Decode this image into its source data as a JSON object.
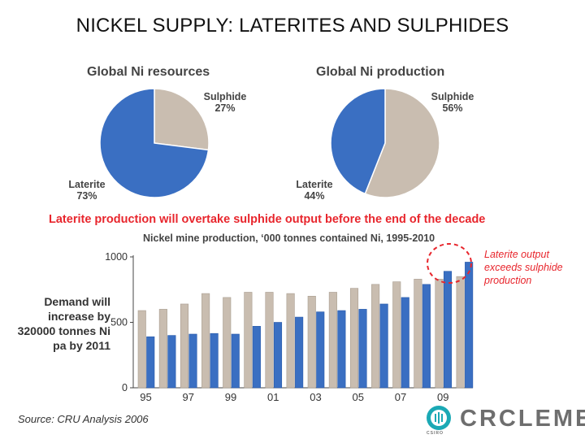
{
  "slide": {
    "title": "NICKEL SUPPLY:  LATERITES AND SULPHIDES",
    "headline": "Laterite production will overtake sulphide output before the end of the decade",
    "demand_note": "Demand will increase by 320000 tonnes Ni pa by 2011",
    "callout": "Laterite output exceeds sulphide production",
    "source": "Source: CRU Analysis 2006",
    "logo": {
      "word": "CRCLEME",
      "small_text": "CSIRO"
    }
  },
  "colors": {
    "laterite": "#3a6fc2",
    "sulphide": "#c9bdb0",
    "accent": "#e8262d"
  },
  "chart_data": [
    {
      "type": "pie",
      "title": "Global Ni resources",
      "labels": [
        "Sulphide",
        "Laterite"
      ],
      "values": [
        27,
        73
      ],
      "value_labels": [
        "27%",
        "73%"
      ]
    },
    {
      "type": "pie",
      "title": "Global Ni production",
      "labels": [
        "Sulphide",
        "Laterite"
      ],
      "values": [
        56,
        44
      ],
      "value_labels": [
        "56%",
        "44%"
      ]
    },
    {
      "type": "bar",
      "title": "Nickel mine production, ‘000 tonnes contained Ni, 1995-2010",
      "categories": [
        "95",
        "96",
        "97",
        "98",
        "99",
        "00",
        "01",
        "02",
        "03",
        "04",
        "05",
        "06",
        "07",
        "08",
        "09",
        "10"
      ],
      "tick_labels": [
        "95",
        "97",
        "99",
        "01",
        "03",
        "05",
        "07",
        "09"
      ],
      "ylim": [
        0,
        1000
      ],
      "yticks": [
        "0",
        "500",
        "1000"
      ],
      "series": [
        {
          "name": "Sulphide",
          "values": [
            590,
            600,
            640,
            720,
            690,
            730,
            730,
            720,
            700,
            730,
            760,
            790,
            810,
            830,
            830,
            850
          ]
        },
        {
          "name": "Laterite",
          "values": [
            390,
            400,
            410,
            415,
            410,
            470,
            500,
            540,
            580,
            590,
            600,
            640,
            690,
            790,
            890,
            960
          ]
        }
      ]
    }
  ]
}
